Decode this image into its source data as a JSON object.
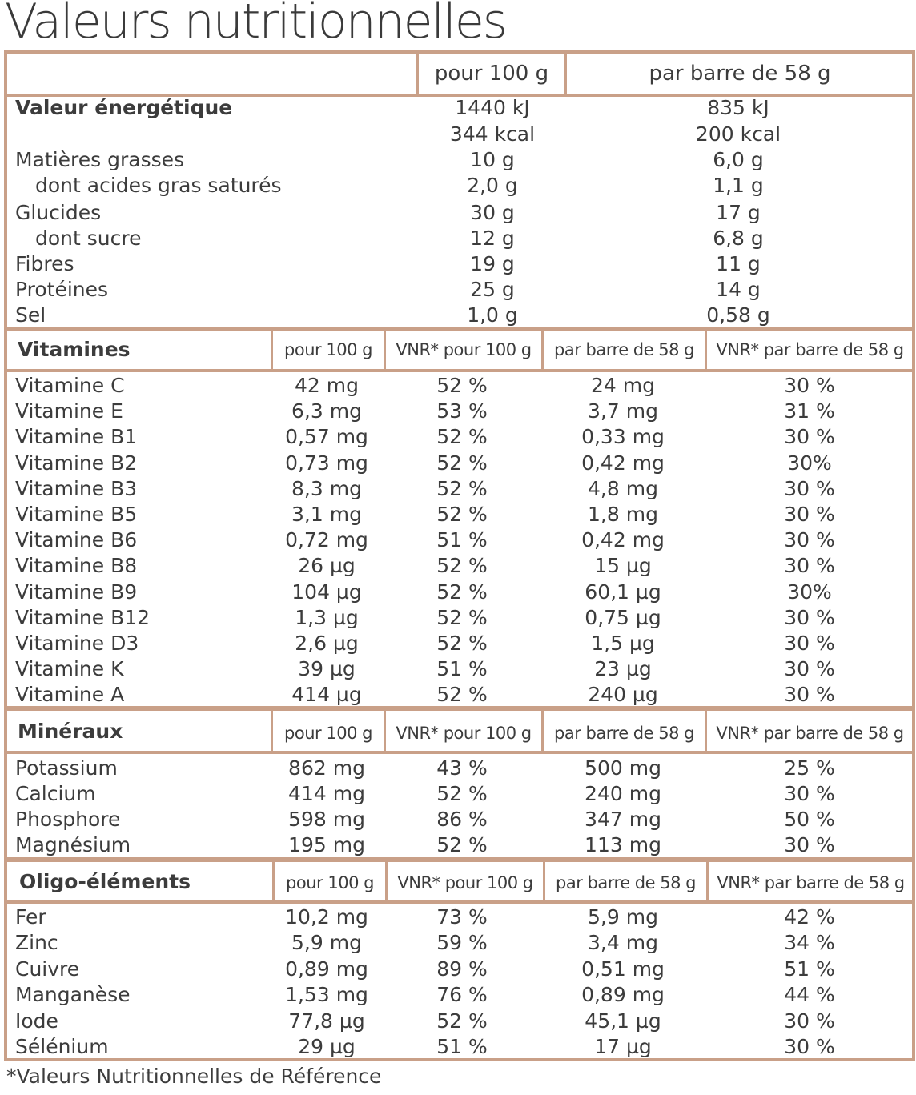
{
  "title": "Valeurs nutritionnelles",
  "footnote": "*Valeurs Nutritionnelles de Référence",
  "energy_table": {
    "headers": [
      "pour 100 g",
      "par barre de 58 g"
    ],
    "rows": [
      {
        "label": "Valeur énergétique",
        "bold": true,
        "per100": "1440 kJ",
        "perBar": "835 kJ"
      },
      {
        "label": "",
        "per100": "344 kcal",
        "perBar": "200 kcal"
      },
      {
        "label": "Matières grasses",
        "per100": "10 g",
        "perBar": "6,0 g"
      },
      {
        "label": "dont acides gras saturés",
        "indent": true,
        "per100": "2,0 g",
        "perBar": "1,1 g"
      },
      {
        "label": "Glucides",
        "per100": "30 g",
        "perBar": "17 g"
      },
      {
        "label": "dont sucre",
        "indent": true,
        "per100": "12 g",
        "perBar": "6,8 g"
      },
      {
        "label": "Fibres",
        "per100": "19 g",
        "perBar": "11 g"
      },
      {
        "label": "Protéines",
        "per100": "25 g",
        "perBar": "14 g"
      },
      {
        "label": "Sel",
        "per100": "1,0 g",
        "perBar": "0,58 g"
      }
    ]
  },
  "column_headers": [
    "pour 100 g",
    "VNR* pour 100 g",
    "par barre de 58 g",
    "VNR* par barre de 58 g"
  ],
  "sections": [
    {
      "title": "Vitamines",
      "rows": [
        [
          "Vitamine C",
          "42 mg",
          "52 %",
          "24 mg",
          "30 %"
        ],
        [
          "Vitamine E",
          "6,3 mg",
          "53 %",
          "3,7 mg",
          "31 %"
        ],
        [
          "Vitamine B1",
          "0,57 mg",
          "52 %",
          "0,33 mg",
          "30 %"
        ],
        [
          "Vitamine B2",
          "0,73 mg",
          "52 %",
          "0,42 mg",
          "30%"
        ],
        [
          "Vitamine B3",
          "8,3 mg",
          "52 %",
          "4,8 mg",
          "30 %"
        ],
        [
          "Vitamine B5",
          "3,1 mg",
          "52 %",
          "1,8 mg",
          "30 %"
        ],
        [
          "Vitamine B6",
          "0,72 mg",
          "51 %",
          "0,42 mg",
          "30 %"
        ],
        [
          "Vitamine B8",
          "26 µg",
          "52 %",
          "15 µg",
          "30 %"
        ],
        [
          "Vitamine B9",
          "104 µg",
          "52 %",
          "60,1 µg",
          "30%"
        ],
        [
          "Vitamine B12",
          "1,3 µg",
          "52 %",
          "0,75 µg",
          "30 %"
        ],
        [
          "Vitamine D3",
          "2,6 µg",
          "52 %",
          "1,5 µg",
          "30 %"
        ],
        [
          "Vitamine K",
          "39 µg",
          "51 %",
          "23 µg",
          "30 %"
        ],
        [
          "Vitamine A",
          "414 µg",
          "52 %",
          "240 µg",
          "30 %"
        ]
      ]
    },
    {
      "title": "Minéraux",
      "rows": [
        [
          "Potassium",
          "862 mg",
          "43 %",
          "500 mg",
          "25 %"
        ],
        [
          "Calcium",
          "414 mg",
          "52 %",
          "240 mg",
          "30 %"
        ],
        [
          "Phosphore",
          "598 mg",
          "86 %",
          "347 mg",
          "50 %"
        ],
        [
          "Magnésium",
          "195 mg",
          "52 %",
          "113 mg",
          "30 %"
        ]
      ]
    },
    {
      "title": "Oligo-éléments",
      "rows": [
        [
          "Fer",
          "10,2 mg",
          "73 %",
          "5,9 mg",
          "42 %"
        ],
        [
          "Zinc",
          "5,9 mg",
          "59 %",
          "3,4 mg",
          "34 %"
        ],
        [
          "Cuivre",
          "0,89 mg",
          "89 %",
          "0,51 mg",
          "51 %"
        ],
        [
          "Manganèse",
          "1,53 mg",
          "76 %",
          "0,89 mg",
          "44 %"
        ],
        [
          "Iode",
          "77,8 µg",
          "52 %",
          "45,1 µg",
          "30 %"
        ],
        [
          "Sélénium",
          "29 µg",
          "51 %",
          "17 µg",
          "30 %"
        ]
      ]
    }
  ],
  "colors": {
    "border": "#c9a088",
    "text": "#3c3c3c"
  }
}
